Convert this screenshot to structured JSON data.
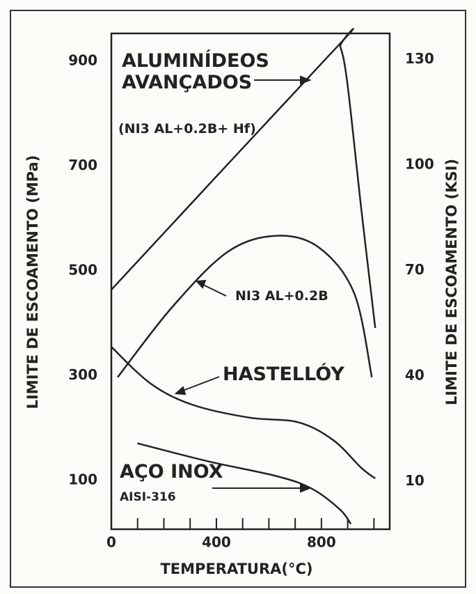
{
  "chart_data": {
    "type": "line",
    "xlabel": "TEMPERATURA(°C)",
    "ylabel": "LIMITE DE ESCOAMENTO (MPa)",
    "y2label": "LIMITE DE ESCOAMENTO (KSI)",
    "xlim": [
      0,
      1060
    ],
    "xticks": [
      0,
      400,
      800
    ],
    "x_minor_ticks": [
      100,
      200,
      300,
      500,
      600,
      700,
      900,
      1000
    ],
    "ylim": [
      7,
      953
    ],
    "yticks": [
      100,
      300,
      500,
      700,
      900
    ],
    "y2lim": [
      -3.6,
      137.4
    ],
    "y2ticks": [
      10,
      40,
      70,
      100,
      130
    ],
    "grid": false,
    "series": [
      {
        "name": "ALUMINÍDEOS AVANÇADOS",
        "color": "#222222",
        "x": [
          0,
          853,
          872,
          899,
          952,
          1005
        ],
        "values": [
          464,
          924,
          927,
          857,
          617,
          391
        ]
      },
      {
        "name": "NI3 AL+0.2B",
        "color": "#222222",
        "x": [
          24,
          232,
          445,
          632,
          792,
          925,
          992
        ],
        "values": [
          297,
          431,
          537,
          567,
          544,
          457,
          297
        ]
      },
      {
        "name": "HASTELLÓY",
        "color": "#222222",
        "x": [
          0,
          152,
          312,
          525,
          712,
          845,
          952,
          1005
        ],
        "values": [
          355,
          284,
          244,
          220,
          211,
          177,
          124,
          104
        ]
      },
      {
        "name": "AÇO INOX",
        "color": "#222222",
        "x": [
          99,
          365,
          632,
          765,
          872,
          912
        ],
        "values": [
          171,
          137,
          108,
          84,
          44,
          17
        ]
      }
    ],
    "annotations": [
      "(NI3 AL+0.2B+ Hf)",
      "AISI-316"
    ]
  }
}
